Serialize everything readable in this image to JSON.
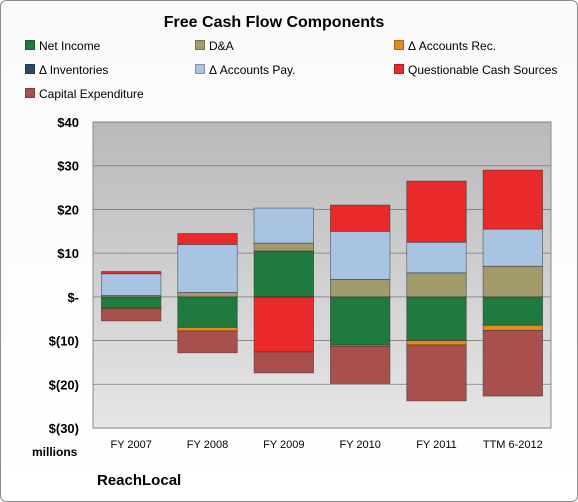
{
  "brand": "ReachLocal",
  "chart_data": {
    "type": "bar",
    "stacked": true,
    "title": "Free Cash Flow Components",
    "ylabel": "",
    "xlabel": "",
    "units_label": "millions",
    "categories": [
      "FY 2007",
      "FY 2008",
      "FY 2009",
      "FY 2010",
      "FY 2011",
      "TTM 6-2012"
    ],
    "ylim": [
      -30,
      40
    ],
    "yticks": [
      40,
      30,
      20,
      10,
      0,
      -10,
      -20,
      -30
    ],
    "ytick_labels": [
      "$40",
      "$30",
      "$20",
      "$10",
      "$-",
      "$(10)",
      "$(20)",
      "$(30)"
    ],
    "grid": true,
    "legend_position": "top",
    "series": [
      {
        "name": "Net Income",
        "color": "#1f7a3f",
        "values": [
          -2.5,
          -7.0,
          10.5,
          -11.0,
          -10.0,
          -6.5
        ]
      },
      {
        "name": "D&A",
        "color": "#a39a6b",
        "values": [
          0.3,
          1.0,
          1.8,
          4.0,
          5.5,
          7.0
        ]
      },
      {
        "name": "Δ Accounts Rec.",
        "color": "#e68a1f",
        "values": [
          -0.2,
          -0.8,
          -0.1,
          -0.3,
          -1.0,
          -1.2
        ]
      },
      {
        "name": "Δ Inventories",
        "color": "#2e4a66",
        "values": [
          0,
          0,
          0,
          0,
          0,
          0
        ]
      },
      {
        "name": "Δ Accounts Pay.",
        "color": "#a9c3e3",
        "values": [
          5.0,
          11.0,
          8.0,
          11.0,
          7.0,
          8.5
        ]
      },
      {
        "name": "Questionable Cash Sources",
        "color": "#ea2a2a",
        "values": [
          0.5,
          2.5,
          -12.5,
          6.0,
          14.0,
          13.5
        ]
      },
      {
        "name": "Capital Expenditure",
        "color": "#a9504f",
        "values": [
          -2.8,
          -5.0,
          -4.8,
          -8.5,
          -12.8,
          -15.0
        ]
      }
    ]
  }
}
